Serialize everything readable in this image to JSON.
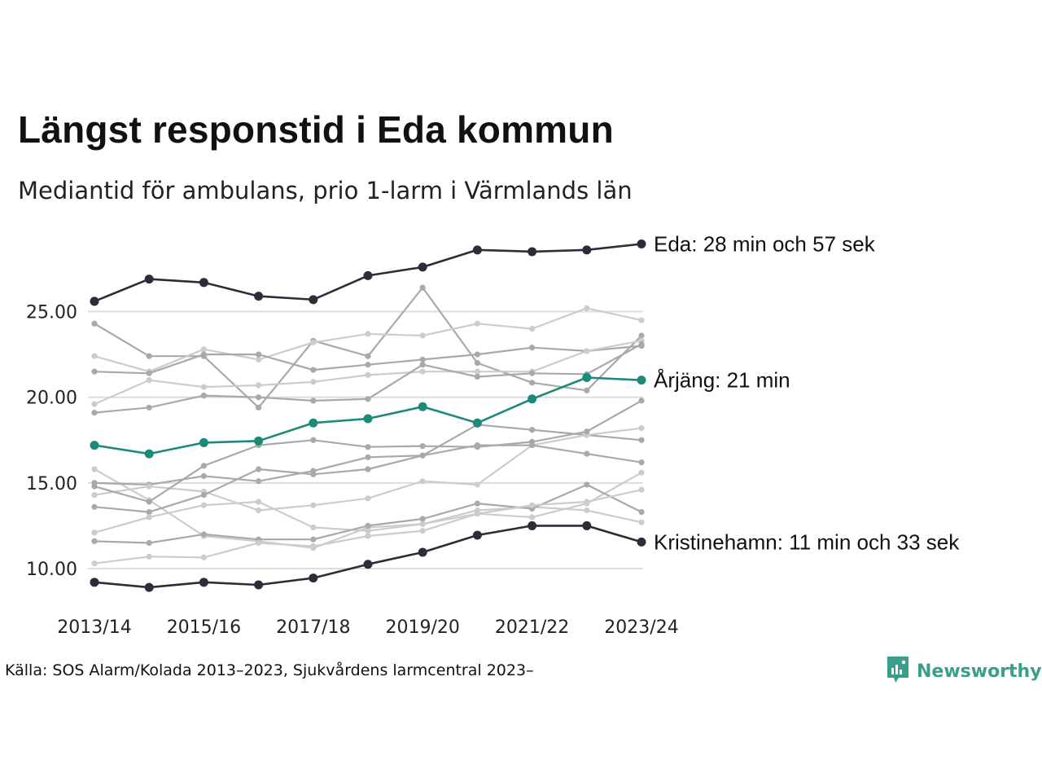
{
  "title": "Längst responstid i Eda kommun",
  "subtitle": "Mediantid för ambulans, prio 1-larm i Värmlands län",
  "source": "Källa: SOS Alarm/Kolada 2013–2023, Sjukvårdens larmcentral 2023–",
  "brand": {
    "name": "Newsworthy",
    "icon": "newsworthy-logo-icon",
    "color": "#3a9e8b"
  },
  "colors": {
    "highlight_dark": "#2d2d3a",
    "highlight_teal": "#1b8a7a",
    "background_a": "#a9a9a9",
    "background_b": "#cccccc",
    "grid": "#dddddd"
  },
  "chart_data": {
    "type": "line",
    "x": [
      "2013/14",
      "2014/15",
      "2015/16",
      "2016/17",
      "2017/18",
      "2018/19",
      "2019/20",
      "2020/21",
      "2021/22",
      "2022/23",
      "2023/24"
    ],
    "x_tick_labels": [
      "2013/14",
      "2015/16",
      "2017/18",
      "2019/20",
      "2021/22",
      "2023/24"
    ],
    "y_ticks": [
      10,
      15,
      20,
      25
    ],
    "y_tick_labels": [
      "10.00",
      "15.00",
      "20.00",
      "25.00"
    ],
    "ylim": [
      8.5,
      29.5
    ],
    "grid": "horizontal",
    "highlighted": [
      {
        "label": "Eda: 28 min och 57 sek",
        "color": "#2d2d3a",
        "values": [
          25.6,
          26.9,
          26.7,
          25.9,
          25.7,
          27.1,
          27.6,
          28.6,
          28.5,
          28.6,
          28.95
        ]
      },
      {
        "label": "Årjäng: 21 min",
        "color": "#1b8a7a",
        "values": [
          17.2,
          16.7,
          17.35,
          17.45,
          18.5,
          18.75,
          19.45,
          18.5,
          19.9,
          21.15,
          21.0
        ]
      },
      {
        "label": "Kristinehamn: 11 min och 33 sek",
        "color": "#2d2d3a",
        "values": [
          9.2,
          8.9,
          9.2,
          9.05,
          9.45,
          10.25,
          10.95,
          11.95,
          12.5,
          12.5,
          11.55
        ]
      }
    ],
    "background_series": [
      {
        "values": [
          24.3,
          22.4,
          22.4,
          19.4,
          23.3,
          22.4,
          26.4,
          22.0,
          20.85,
          20.4,
          23.6
        ]
      },
      {
        "values": [
          22.4,
          21.5,
          22.8,
          22.2,
          23.2,
          23.7,
          23.6,
          24.3,
          24.0,
          25.2,
          24.5
        ]
      },
      {
        "values": [
          21.5,
          21.4,
          22.5,
          22.5,
          21.6,
          21.9,
          22.2,
          22.5,
          22.9,
          22.7,
          23.0
        ]
      },
      {
        "values": [
          19.6,
          21.0,
          20.6,
          20.7,
          20.9,
          21.3,
          21.5,
          21.5,
          21.5,
          22.7,
          23.3
        ]
      },
      {
        "values": [
          19.1,
          19.4,
          20.1,
          20.0,
          19.8,
          19.9,
          21.9,
          21.2,
          21.4,
          21.35,
          23.1
        ]
      },
      {
        "values": [
          15.8,
          14.0,
          11.9,
          11.6,
          11.2,
          12.4,
          12.6,
          13.4,
          13.6,
          13.4,
          12.7
        ]
      },
      {
        "values": [
          15.0,
          14.9,
          15.4,
          15.1,
          15.7,
          16.5,
          16.6,
          18.4,
          18.1,
          17.8,
          17.5
        ]
      },
      {
        "values": [
          14.3,
          14.8,
          14.5,
          13.4,
          13.7,
          14.1,
          15.1,
          14.9,
          17.2,
          17.8,
          18.2
        ]
      },
      {
        "values": [
          13.6,
          13.3,
          14.3,
          15.8,
          15.5,
          15.8,
          16.6,
          17.2,
          17.2,
          16.7,
          16.2
        ]
      },
      {
        "values": [
          12.1,
          13.0,
          13.7,
          13.9,
          12.4,
          12.2,
          12.6,
          13.2,
          13.0,
          13.8,
          15.6
        ]
      },
      {
        "values": [
          11.6,
          11.5,
          12.0,
          11.7,
          11.7,
          12.5,
          12.9,
          13.8,
          13.5,
          14.9,
          13.3
        ]
      },
      {
        "values": [
          10.3,
          10.7,
          10.65,
          11.5,
          11.3,
          11.9,
          12.2,
          13.2,
          13.7,
          13.9,
          14.6
        ]
      },
      {
        "values": [
          14.8,
          13.9,
          16.0,
          17.2,
          17.5,
          17.1,
          17.15,
          17.1,
          17.4,
          18.0,
          19.8
        ]
      }
    ]
  }
}
